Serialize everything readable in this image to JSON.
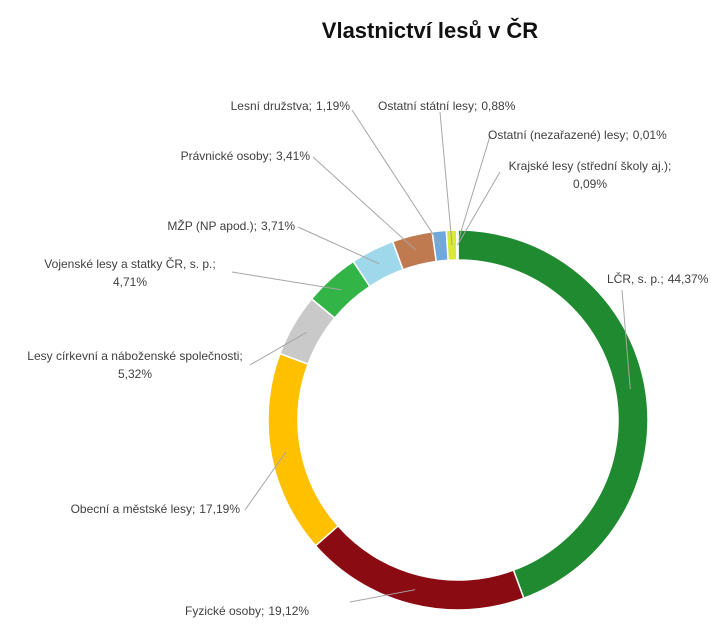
{
  "chart_data": {
    "type": "donut",
    "title": "Vlastnictví lesů v ČR",
    "categories": [
      "LČR, s. p.;",
      "Fyzické osoby;",
      "Obecní a městské lesy;",
      "Lesy církevní a náboženské společnosti;",
      "Vojenské lesy a statky ČR, s. p.;",
      "MŽP (NP apod.);",
      "Právnické osoby;",
      "Lesní družstva;",
      "Ostatní státní lesy;",
      "Ostatní (nezařazené) lesy;",
      "Krajské lesy (střední školy aj.);"
    ],
    "values": [
      44.37,
      19.12,
      17.19,
      5.32,
      4.71,
      3.71,
      3.41,
      1.19,
      0.88,
      0.01,
      0.09
    ],
    "value_labels": [
      "44,37%",
      "19,12%",
      "17,19%",
      "5,32%",
      "4,71%",
      "3,71%",
      "3,41%",
      "1,19%",
      "0,88%",
      "0,01%",
      "0,09%"
    ],
    "colors": [
      "#1f8a2f",
      "#8b0b12",
      "#ffc000",
      "#c9c9c9",
      "#33b446",
      "#9ed8ea",
      "#c07a4f",
      "#6fa8dc",
      "#d9e83a",
      "#f0f0a0",
      "#9bd65a"
    ]
  }
}
